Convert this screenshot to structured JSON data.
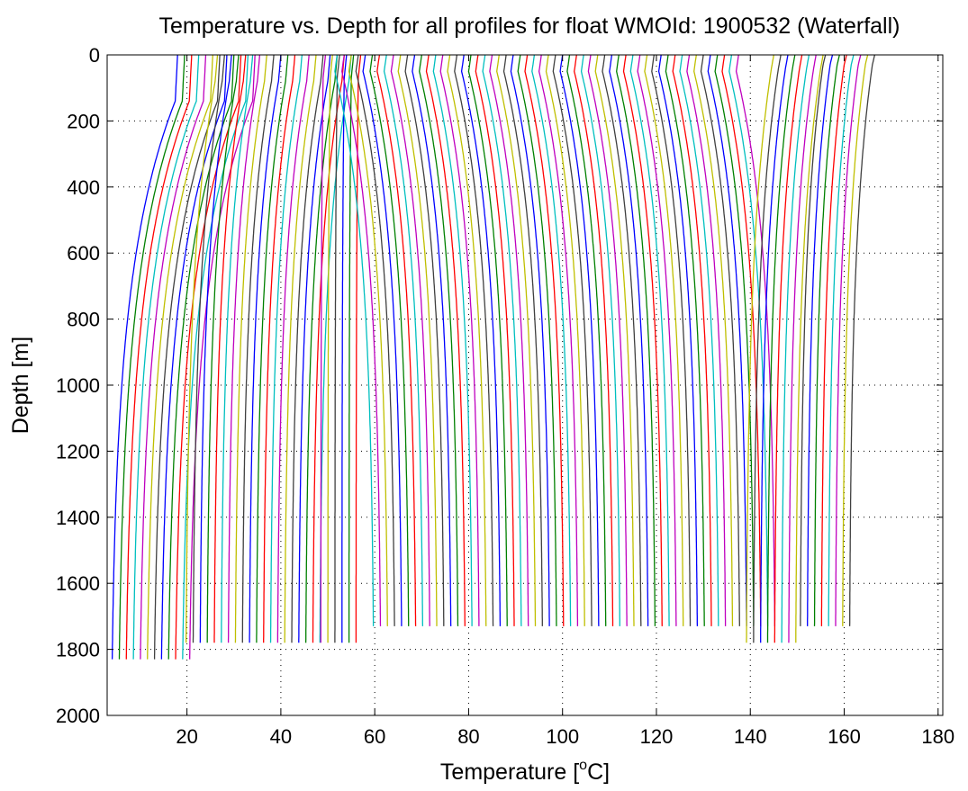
{
  "chart_data": {
    "type": "line",
    "title": "Temperature vs. Depth for all profiles for float WMOId: 1900532 (Waterfall)",
    "xlabel_main": "Temperature [",
    "xlabel_sup": "o",
    "xlabel_end": "C]",
    "ylabel": "Depth [m]",
    "xlim": [
      3,
      181
    ],
    "ylim": [
      0,
      2000
    ],
    "y_reversed": true,
    "grid": true,
    "xticks": [
      20,
      40,
      60,
      80,
      100,
      120,
      140,
      160,
      180
    ],
    "yticks": [
      0,
      200,
      400,
      600,
      800,
      1000,
      1200,
      1400,
      1600,
      1800,
      2000
    ],
    "colors": [
      "#0000ff",
      "#008000",
      "#ff0000",
      "#00bfbf",
      "#bf00bf",
      "#bfbf00",
      "#404040"
    ],
    "profile_offset_step": 1.5,
    "profile_groups": [
      {
        "count": 12,
        "first_surface_temp": 18.0,
        "first_deep_temp": 3.6,
        "mixed_layer_depth": 140,
        "bottom_depth": 1830
      },
      {
        "count": 20,
        "first_surface_temp": 26.5,
        "first_deep_temp": 19.6,
        "mixed_layer_depth": 80,
        "bottom_depth": 1780
      },
      {
        "count": 6,
        "first_surface_temp": 49.5,
        "first_deep_temp": 48.5,
        "mixed_layer_depth": 70,
        "bottom_depth": 1780
      },
      {
        "count": 58,
        "first_surface_temp": 52.0,
        "first_deep_temp": 60.0,
        "mixed_layer_depth": 50,
        "bottom_depth": 1730
      },
      {
        "count": 8,
        "first_surface_temp": 145.0,
        "first_deep_temp": 139.0,
        "mixed_layer_depth": 40,
        "bottom_depth": 1780
      },
      {
        "count": 8,
        "first_surface_temp": 156.0,
        "first_deep_temp": 150.5,
        "mixed_layer_depth": 30,
        "bottom_depth": 1730
      }
    ]
  }
}
